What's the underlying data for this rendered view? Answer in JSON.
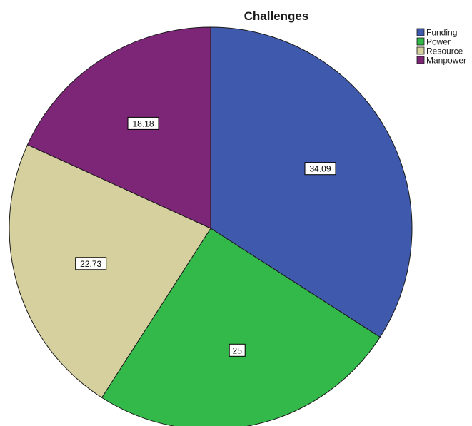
{
  "chart_data": {
    "type": "pie",
    "title": "Challenges",
    "categories": [
      "Funding",
      "Power",
      "Resource",
      "Manpower"
    ],
    "values": [
      34.09,
      25,
      22.73,
      18.18
    ],
    "data_labels": [
      "34.09",
      "25",
      "22.73",
      "18.18"
    ],
    "colors": [
      "#3f59ad",
      "#33b84a",
      "#d6cf9e",
      "#7d2577"
    ],
    "start_angle": "12 o'clock",
    "direction": "clockwise",
    "legend_position": "top-right"
  }
}
